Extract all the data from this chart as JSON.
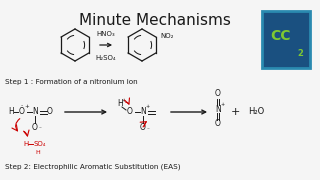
{
  "title": "Minute Mechanisms",
  "title_fontsize": 11,
  "background_color": "#f5f5f5",
  "step1_text": "Step 1 : Formation of a nitronium ion",
  "step2_text": "Step 2: Electrophilic Aromatic Substitution (EAS)",
  "text_color": "#1a1a1a",
  "arrow_color": "#1a1a1a",
  "red_color": "#cc0000",
  "cc_outer": "#1a6b9e",
  "cc_inner": "#1a5080",
  "cc_border": "#2a8ab0",
  "cc_text": "#7ec832",
  "cc_sub": "2"
}
